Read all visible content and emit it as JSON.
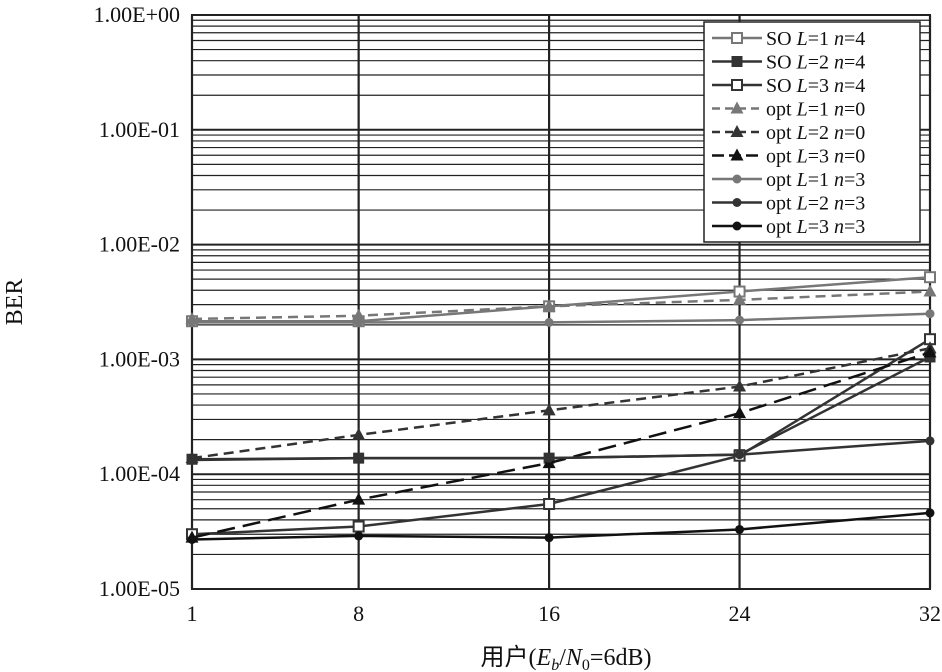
{
  "chart_data": {
    "type": "line",
    "title": "",
    "xlabel": "用户(E_b/N_0=6dB)",
    "xlabel_parts": {
      "prefix": "用户(",
      "e": "E",
      "b": "b",
      "slash": "/",
      "n": "N",
      "zero": "0",
      "suffix": "=6dB)"
    },
    "ylabel": "BER",
    "yscale": "log",
    "ylim": [
      1e-05,
      1
    ],
    "x": [
      1,
      8,
      16,
      24,
      32
    ],
    "x_tick_labels": [
      "1",
      "8",
      "16",
      "24",
      "32"
    ],
    "y_tick_labels": [
      "1.00E+00",
      "1.00E-01",
      "1.00E-02",
      "1.00E-03",
      "1.00E-04",
      "1.00E-05"
    ],
    "y_tick_values": [
      1,
      0.1,
      0.01,
      0.001,
      0.0001,
      1e-05
    ],
    "grid": true,
    "legend_position": "top-right",
    "series": [
      {
        "name": "SO L=1 n=4",
        "legend": {
          "prefix": "SO ",
          "L": "L",
          "mid": "=1 ",
          "n": "n",
          "suffix": "=4"
        },
        "marker": "square-open",
        "line": "solid",
        "color": "#777777",
        "values": [
          0.00215,
          0.00215,
          0.0029,
          0.0039,
          0.0052
        ]
      },
      {
        "name": "SO L=2 n=4",
        "legend": {
          "prefix": "SO ",
          "L": "L",
          "mid": "=2 ",
          "n": "n",
          "suffix": "=4"
        },
        "marker": "square-filled",
        "line": "solid",
        "color": "#333333",
        "values": [
          0.000135,
          0.000138,
          0.000138,
          0.000148,
          0.00105
        ]
      },
      {
        "name": "SO L=3 n=4",
        "legend": {
          "prefix": "SO ",
          "L": "L",
          "mid": "=3 ",
          "n": "n",
          "suffix": "=4"
        },
        "marker": "square-open",
        "line": "solid",
        "color": "#333333",
        "values": [
          3e-05,
          3.5e-05,
          5.5e-05,
          0.000145,
          0.0015
        ]
      },
      {
        "name": "opt L=1 n=0",
        "legend": {
          "prefix": "opt ",
          "L": "L",
          "mid": "=1 ",
          "n": "n",
          "suffix": "=0"
        },
        "marker": "triangle",
        "line": "dash",
        "color": "#777777",
        "values": [
          0.00225,
          0.0024,
          0.0029,
          0.0033,
          0.0039
        ]
      },
      {
        "name": "opt L=2 n=0",
        "legend": {
          "prefix": "opt ",
          "L": "L",
          "mid": "=2 ",
          "n": "n",
          "suffix": "=0"
        },
        "marker": "triangle",
        "line": "dash",
        "color": "#333333",
        "values": [
          0.000138,
          0.00022,
          0.00036,
          0.00058,
          0.00125
        ]
      },
      {
        "name": "opt L=3 n=0",
        "legend": {
          "prefix": "opt ",
          "L": "L",
          "mid": "=3 ",
          "n": "n",
          "suffix": "=0"
        },
        "marker": "triangle",
        "line": "longdash",
        "color": "#111111",
        "values": [
          2.8e-05,
          6e-05,
          0.000125,
          0.00034,
          0.00115
        ]
      },
      {
        "name": "opt L=1 n=3",
        "legend": {
          "prefix": "opt ",
          "L": "L",
          "mid": "=1 ",
          "n": "n",
          "suffix": "=3"
        },
        "marker": "dot",
        "line": "solid",
        "color": "#777777",
        "values": [
          0.0021,
          0.0021,
          0.0021,
          0.0022,
          0.0025
        ]
      },
      {
        "name": "opt L=2 n=3",
        "legend": {
          "prefix": "opt ",
          "L": "L",
          "mid": "=2 ",
          "n": "n",
          "suffix": "=3"
        },
        "marker": "dot",
        "line": "solid",
        "color": "#333333",
        "values": [
          0.000133,
          0.000138,
          0.000138,
          0.000148,
          0.000195
        ]
      },
      {
        "name": "opt L=3 n=3",
        "legend": {
          "prefix": "opt ",
          "L": "L",
          "mid": "=3 ",
          "n": "n",
          "suffix": "=3"
        },
        "marker": "dot",
        "line": "solid",
        "color": "#111111",
        "values": [
          2.7e-05,
          2.9e-05,
          2.8e-05,
          3.3e-05,
          4.6e-05
        ]
      }
    ]
  }
}
